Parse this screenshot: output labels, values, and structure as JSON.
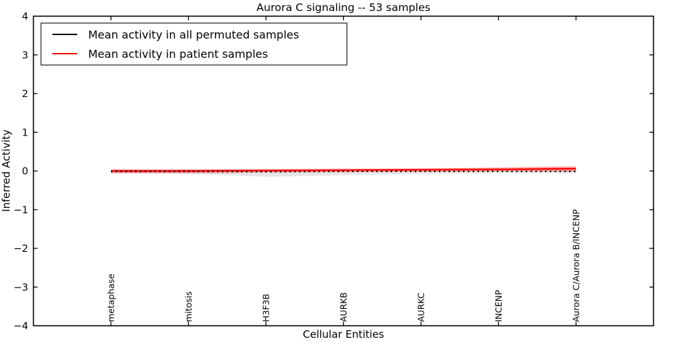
{
  "chart_data": {
    "type": "line",
    "title": "Aurora C signaling -- 53 samples",
    "xlabel": "Cellular Entities",
    "ylabel": "Inferred Activity",
    "ylim": [
      -4,
      4
    ],
    "yticks": [
      4,
      3,
      2,
      1,
      0,
      -1,
      -2,
      -3,
      -4
    ],
    "ytick_labels": [
      "4",
      "3",
      "2",
      "1",
      "0",
      "−1",
      "−2",
      "−3",
      "−4"
    ],
    "categories": [
      "metaphase",
      "mitosis",
      "H3F3B",
      "AURKB",
      "AURKC",
      "INCENP",
      "Aurora C/Aurora B/INCENP"
    ],
    "grid": false,
    "legend_position": "upper left",
    "series": [
      {
        "name": "Mean activity in all permuted samples",
        "color": "#000000",
        "style": "dotted",
        "values": [
          -0.01,
          -0.01,
          -0.02,
          -0.01,
          -0.01,
          -0.01,
          -0.01
        ],
        "band_upper": [
          0.03,
          0.03,
          0.03,
          0.03,
          0.03,
          0.03,
          0.04
        ],
        "band_lower": [
          -0.05,
          -0.07,
          -0.15,
          -0.11,
          -0.07,
          -0.05,
          -0.06
        ],
        "band_color": "#c8c8c8",
        "band_opacity": 0.45
      },
      {
        "name": "Mean activity in patient samples",
        "color": "#ff0000",
        "style": "solid",
        "values": [
          0.0,
          0.0,
          0.01,
          0.02,
          0.03,
          0.04,
          0.06
        ],
        "band_upper": [
          0.04,
          0.04,
          0.05,
          0.06,
          0.07,
          0.09,
          0.12
        ],
        "band_lower": [
          -0.06,
          -0.06,
          -0.04,
          -0.03,
          -0.02,
          -0.01,
          -0.02
        ],
        "band_color": "#ff0000",
        "band_opacity": 0.35
      }
    ]
  }
}
